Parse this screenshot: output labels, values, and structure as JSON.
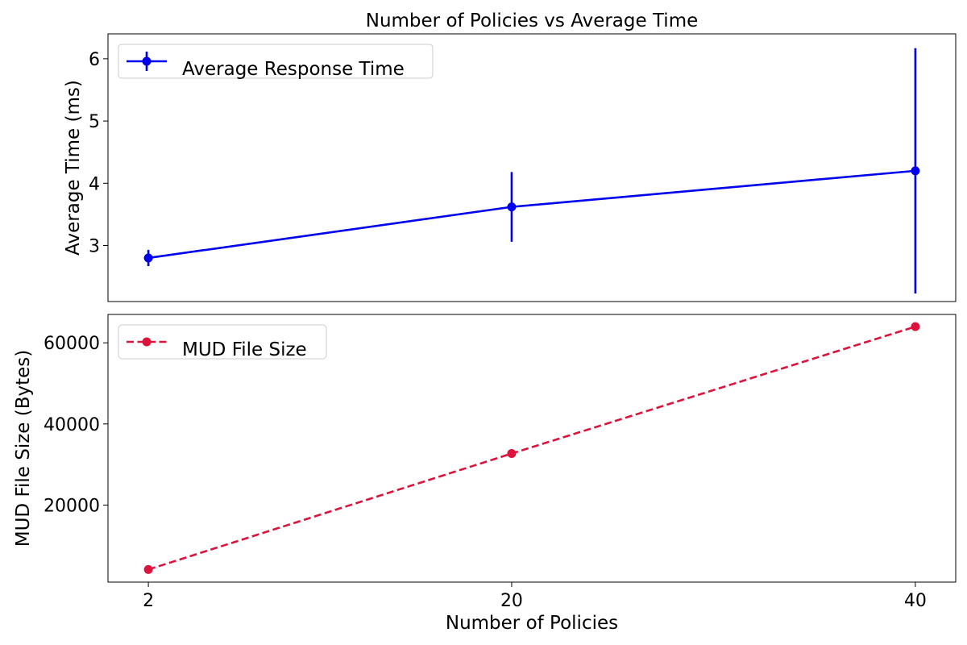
{
  "chart_data": [
    {
      "type": "line",
      "title": "Number of Policies vs Average Time",
      "xlabel": "",
      "ylabel": "Average Time (ms)",
      "x": [
        2,
        20,
        40
      ],
      "x_tick_labels": [],
      "y_ticks": [
        "3",
        "4",
        "5",
        "6"
      ],
      "xlim": [
        0,
        42
      ],
      "ylim": [
        2.1,
        6.4
      ],
      "grid": false,
      "legend_position": "upper-left",
      "series": [
        {
          "name": "Average Response Time",
          "values": [
            2.8,
            3.62,
            4.2
          ],
          "error": [
            0.13,
            0.56,
            1.97
          ],
          "color": "#0000ee",
          "line_style": "solid",
          "marker": "circle"
        }
      ]
    },
    {
      "type": "line",
      "title": "",
      "xlabel": "Number of Policies",
      "ylabel": "MUD File Size (Bytes)",
      "x": [
        2,
        20,
        40
      ],
      "x_tick_labels": [
        "2",
        "20",
        "40"
      ],
      "y_ticks": [
        "20000",
        "40000",
        "60000"
      ],
      "xlim": [
        0,
        42
      ],
      "ylim": [
        1000,
        67000
      ],
      "grid": false,
      "legend_position": "upper-left",
      "series": [
        {
          "name": "MUD File Size",
          "values": [
            4100,
            32700,
            64000
          ],
          "color": "#dc143c",
          "line_style": "dashed",
          "marker": "circle"
        }
      ]
    }
  ]
}
